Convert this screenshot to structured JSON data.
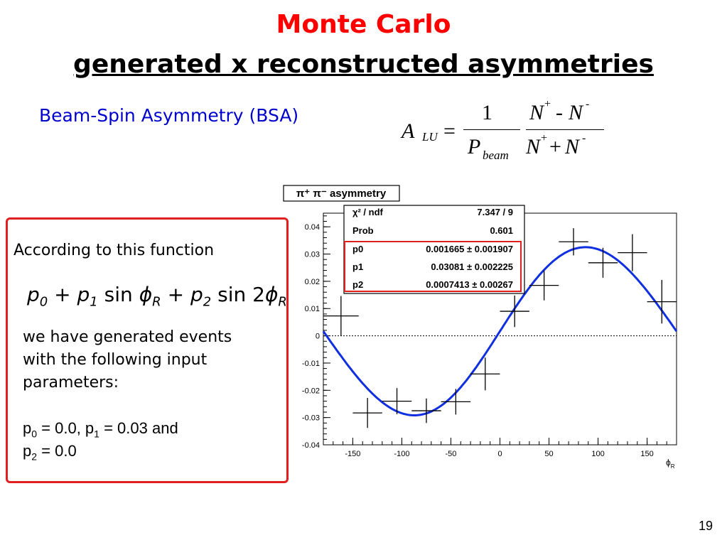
{
  "slide": {
    "title_line1": "Monte Carlo",
    "title_line2": "generated x reconstructed asymmetries",
    "bsa_label": "Beam-Spin Asymmetry (BSA)",
    "page_number": "19"
  },
  "formula": {
    "A": "A",
    "LU": "LU",
    "equals": "=",
    "one": "1",
    "P": "P",
    "beam": "beam",
    "N": "N",
    "plus_sup": "+",
    "minus_sup": "-",
    "minus": "-",
    "plus": "+"
  },
  "left_panel": {
    "intro": "According to this function",
    "fn_p0": "p",
    "fn_sub0": "0",
    "fn_plus1": "+",
    "fn_p1": "p",
    "fn_sub1": "1",
    "fn_sin1": "sin",
    "fn_phi1": "ϕ",
    "fn_R1": "R",
    "fn_plus2": "+",
    "fn_p2": "p",
    "fn_sub2": "2",
    "fn_sin2": "sin 2",
    "fn_phi2": "ϕ",
    "fn_R2": "R",
    "line1": "we have generated events",
    "line2": "with the following input",
    "line3": "parameters:",
    "params_p": "p",
    "params_sub0": "0",
    "params_mid": " = 0.0, p",
    "params_sub1": "1",
    "params_end": " = 0.03 and",
    "params2_p": "p",
    "params2_sub": "2",
    "params2_end": " = 0.0"
  },
  "stats": {
    "rows": [
      {
        "label": "χ² / ndf",
        "value": "7.347 / 9"
      },
      {
        "label": "Prob",
        "value": "0.601"
      },
      {
        "label": "p0",
        "value": "0.001665 ± 0.001907"
      },
      {
        "label": "p1",
        "value": "0.03081 ± 0.002225"
      },
      {
        "label": "p2",
        "value": "0.0007413 ± 0.00267"
      }
    ]
  },
  "chart_data": {
    "type": "scatter",
    "title": "π⁺ π⁻ asymmetry",
    "xlabel": "ϕR",
    "ylabel": "",
    "xlim": [
      -180,
      180
    ],
    "ylim": [
      -0.04,
      0.045
    ],
    "xticks": [
      -150,
      -100,
      -50,
      0,
      50,
      100,
      150
    ],
    "yticks": [
      -0.04,
      -0.03,
      -0.02,
      -0.01,
      0,
      0.01,
      0.02,
      0.03,
      0.04
    ],
    "ytick_labels": [
      "-0.04",
      "-0.03",
      "-0.02",
      "-0.01",
      "0",
      "0.01",
      "0.02",
      "0.03",
      "0.04"
    ],
    "points": [
      {
        "x": -162,
        "y": 0.0073,
        "xerr": 18,
        "yerr": 0.0073
      },
      {
        "x": -135,
        "y": -0.0283,
        "xerr": 15,
        "yerr": 0.0055
      },
      {
        "x": -105,
        "y": -0.024,
        "xerr": 15,
        "yerr": 0.0048
      },
      {
        "x": -75,
        "y": -0.0275,
        "xerr": 15,
        "yerr": 0.0045
      },
      {
        "x": -45,
        "y": -0.0242,
        "xerr": 15,
        "yerr": 0.0047
      },
      {
        "x": -15,
        "y": -0.014,
        "xerr": 15,
        "yerr": 0.006
      },
      {
        "x": 15,
        "y": 0.009,
        "xerr": 15,
        "yerr": 0.0058
      },
      {
        "x": 45,
        "y": 0.0185,
        "xerr": 15,
        "yerr": 0.0055
      },
      {
        "x": 75,
        "y": 0.0345,
        "xerr": 15,
        "yerr": 0.005
      },
      {
        "x": 105,
        "y": 0.0268,
        "xerr": 15,
        "yerr": 0.0055
      },
      {
        "x": 135,
        "y": 0.0305,
        "xerr": 15,
        "yerr": 0.0068
      },
      {
        "x": 165,
        "y": 0.0125,
        "xerr": 15,
        "yerr": 0.008
      }
    ],
    "fit": {
      "p0": 0.001665,
      "p1": 0.03081,
      "p2": 0.0007413
    },
    "colors": {
      "fit_line": "#1030e0",
      "stats_highlight": "#e02020"
    }
  }
}
